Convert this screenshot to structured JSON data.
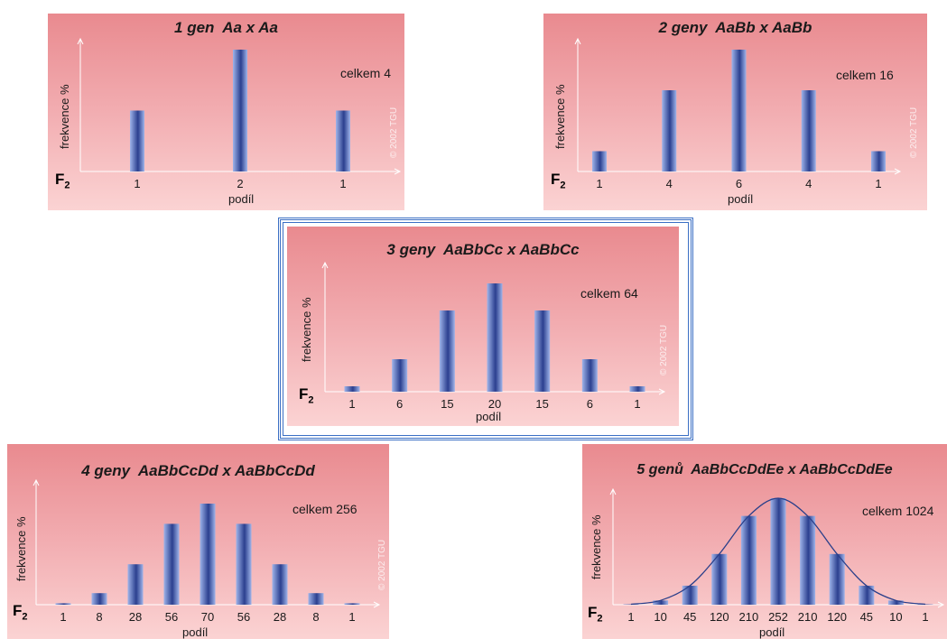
{
  "colors": {
    "bar_dark": "#2b3f8f",
    "bar_light": "#9fb4ea",
    "axis": "#ffffff",
    "curve": "#2a3f8a",
    "frame": "#3b6fc4"
  },
  "chart_data": [
    {
      "type": "bar",
      "title": "1 gen  Aa x Aa",
      "total_label": "celkem 4",
      "ylabel": "frekvence %",
      "xlabel": "podíl",
      "generation_label": "F",
      "generation_sub": "2",
      "watermark": "© 2002 TGU",
      "categories": [
        "1",
        "2",
        "1"
      ],
      "values": [
        1,
        2,
        1
      ],
      "grid": false
    },
    {
      "type": "bar",
      "title": "2 geny  AaBb x AaBb",
      "total_label": "celkem 16",
      "ylabel": "frekvence %",
      "xlabel": "podíl",
      "generation_label": "F",
      "generation_sub": "2",
      "watermark": "© 2002 TGU",
      "categories": [
        "1",
        "4",
        "6",
        "4",
        "1"
      ],
      "values": [
        1,
        4,
        6,
        4,
        1
      ],
      "grid": false
    },
    {
      "type": "bar",
      "title": "3 geny  AaBbCc x AaBbCc",
      "total_label": "celkem 64",
      "ylabel": "frekvence %",
      "xlabel": "podíl",
      "generation_label": "F",
      "generation_sub": "2",
      "watermark": "© 2002 TGU",
      "categories": [
        "1",
        "6",
        "15",
        "20",
        "15",
        "6",
        "1"
      ],
      "values": [
        1,
        6,
        15,
        20,
        15,
        6,
        1
      ],
      "grid": false
    },
    {
      "type": "bar",
      "title": "4 geny  AaBbCcDd x AaBbCcDd",
      "total_label": "celkem 256",
      "ylabel": "frekvence %",
      "xlabel": "podíl",
      "generation_label": "F",
      "generation_sub": "2",
      "watermark": "© 2002 TGU",
      "categories": [
        "1",
        "8",
        "28",
        "56",
        "70",
        "56",
        "28",
        "8",
        "1"
      ],
      "values": [
        1,
        8,
        28,
        56,
        70,
        56,
        28,
        8,
        1
      ],
      "grid": false
    },
    {
      "type": "bar",
      "title": "5 genů  AaBbCcDdEe x AaBbCcDdEe",
      "total_label": "celkem 1024",
      "ylabel": "frekvence %",
      "xlabel": "podíl",
      "generation_label": "F",
      "generation_sub": "2",
      "categories": [
        "1",
        "10",
        "45",
        "120",
        "210",
        "252",
        "210",
        "120",
        "45",
        "10",
        "1"
      ],
      "values": [
        1,
        10,
        45,
        120,
        210,
        252,
        210,
        120,
        45,
        10,
        1
      ],
      "curve": true,
      "grid": false
    }
  ]
}
